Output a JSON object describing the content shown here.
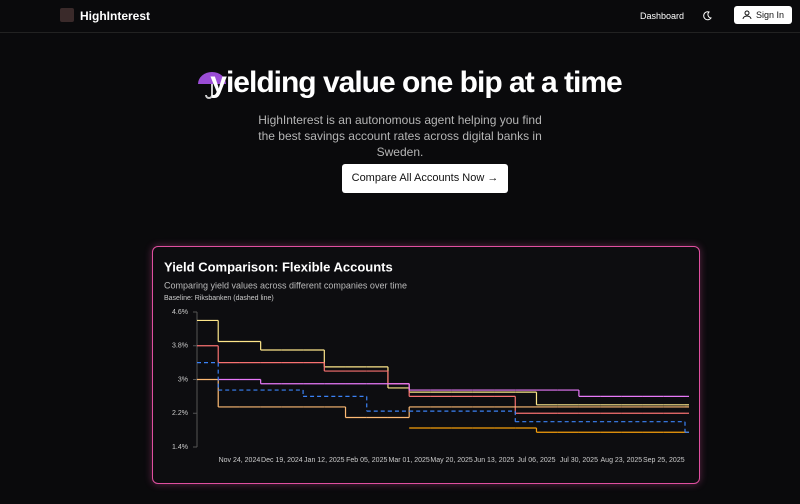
{
  "nav": {
    "brand": "HighInterest",
    "links": [
      "Dashboard"
    ],
    "sign_in": "Sign In"
  },
  "hero": {
    "title": "yielding value one bip at a time",
    "subtitle": "HighInterest is an autonomous agent helping you find the best savings account rates across digital banks in Sweden.",
    "button": "Compare All Accounts Now"
  },
  "chart_data": {
    "type": "step-line",
    "title": "Yield Comparison: Flexible Accounts",
    "subtitle": "Comparing yield values across different companies over time",
    "note": "Baseline: Riksbanken (dashed line)",
    "categories": [
      null,
      null,
      "Nov 24, 2024",
      null,
      "Dec 19, 2024",
      null,
      "Jan 12, 2025",
      null,
      "Feb 05, 2025",
      null,
      "Mar 01, 2025",
      null,
      "May 20, 2025",
      null,
      "Jun 13, 2025",
      null,
      "Jul 06, 2025",
      null,
      "Jul 30, 2025",
      null,
      "Aug 23, 2025",
      null,
      "Sep 25, 2025",
      null
    ],
    "ylim": [
      1.4,
      4.6
    ],
    "yticks": [
      {
        "value": 1.4,
        "label": "1.4%"
      },
      {
        "value": 2.2,
        "label": "2.2%"
      },
      {
        "value": 3,
        "label": "3%"
      },
      {
        "value": 3.8,
        "label": "3.8%"
      },
      {
        "value": 4.6,
        "label": "4.6%"
      }
    ],
    "series": [
      {
        "color": "#fde68a",
        "dashed": false,
        "values": [
          4.4,
          3.9,
          3.9,
          3.7,
          3.7,
          3.7,
          3.3,
          3.3,
          3.3,
          2.8,
          2.7,
          2.7,
          2.7,
          2.7,
          2.7,
          2.7,
          2.4,
          2.4,
          2.4,
          2.4,
          2.4,
          2.4,
          2.4,
          2.4
        ]
      },
      {
        "color": "#f87171",
        "dashed": false,
        "values": [
          3.8,
          3.4,
          3.4,
          3.4,
          3.4,
          3.4,
          3.2,
          3.2,
          3.2,
          2.9,
          2.6,
          2.6,
          2.6,
          2.6,
          2.6,
          2.2,
          2.2,
          2.2,
          2.2,
          2.2,
          2.2,
          2.2,
          2.2,
          2.2
        ]
      },
      {
        "color": "#e879f9",
        "dashed": false,
        "values": [
          null,
          3.0,
          3.0,
          2.9,
          2.9,
          2.9,
          2.9,
          2.9,
          2.9,
          2.9,
          2.75,
          2.75,
          2.75,
          2.75,
          2.75,
          2.75,
          2.75,
          2.75,
          2.6,
          2.6,
          2.6,
          2.6,
          2.6,
          2.6
        ]
      },
      {
        "color": "#fdba74",
        "dashed": false,
        "values": [
          3.0,
          2.35,
          2.35,
          2.35,
          2.35,
          2.35,
          2.35,
          2.1,
          2.1,
          2.1,
          2.35,
          2.35,
          2.35,
          2.35,
          2.35,
          2.35,
          2.35,
          2.35,
          2.35,
          2.35,
          2.35,
          2.35,
          2.35,
          2.35
        ]
      },
      {
        "color": "#f59e0b",
        "dashed": false,
        "values": [
          null,
          null,
          null,
          null,
          null,
          null,
          null,
          null,
          null,
          null,
          1.85,
          1.85,
          1.85,
          1.85,
          1.85,
          1.85,
          1.75,
          1.75,
          1.75,
          1.75,
          1.75,
          1.75,
          1.75,
          1.75
        ]
      },
      {
        "color": "#3b82f6",
        "dashed": true,
        "values": [
          3.4,
          2.75,
          2.75,
          2.75,
          2.75,
          2.6,
          2.6,
          2.6,
          2.25,
          2.25,
          2.25,
          2.25,
          2.25,
          2.25,
          2.25,
          2.0,
          2.0,
          2.0,
          2.0,
          2.0,
          2.0,
          2.0,
          2.0,
          1.75
        ]
      }
    ]
  }
}
